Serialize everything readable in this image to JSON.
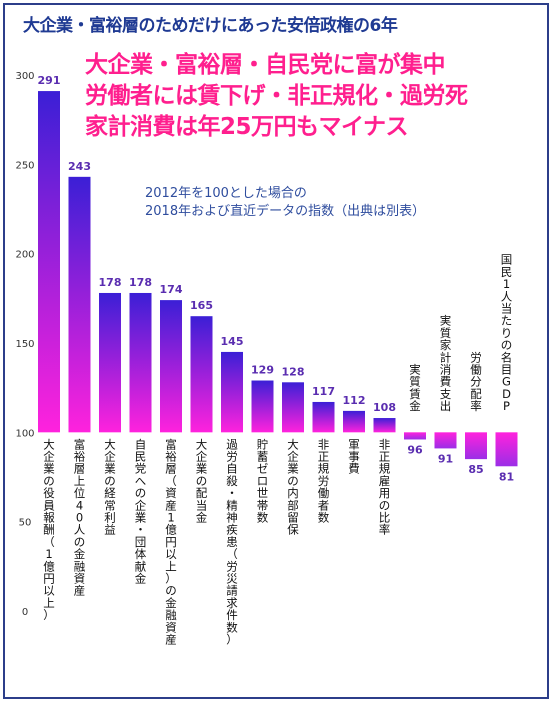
{
  "title": "大企業・富裕層のためだけにあった安倍政権の6年",
  "headlines": [
    "大企業・富裕層・自民党に富が集中",
    "労働者には賃下げ・非正規化・過労死",
    "家計消費は年25万円もマイナス"
  ],
  "notes": [
    "2012年を100とした場合の",
    "2018年および直近データの指数（出典は別表）"
  ],
  "colors": {
    "title": "#1f3a93",
    "headline": "#ff1f8e",
    "note": "#2f4d9e",
    "bar_top": "#3b1fd6",
    "bar_bottom": "#ff22dd",
    "value_label": "#5a2db0"
  },
  "chart_data": {
    "type": "bar",
    "title": "",
    "xlabel": "",
    "ylabel": "",
    "ylim": [
      0,
      300
    ],
    "baseline": 100,
    "yticks": [
      0,
      50,
      100,
      150,
      200,
      250,
      300
    ],
    "categories": [
      "大企業の役員報酬（1億円以上）",
      "富裕層上位40人の金融資産",
      "大企業の経常利益",
      "自民党への企業・団体献金",
      "富裕層（資産1億円以上）の金融資産",
      "大企業の配当金",
      "過労自殺・精神疾患（労災請求件数）",
      "貯蓄ゼロ世帯数",
      "大企業の内部留保",
      "非正規労働者数",
      "軍事費",
      "非正規雇用の比率",
      "実質賃金",
      "実質家計消費支出",
      "労働分配率",
      "国民1人当たりの名目GDP"
    ],
    "values": [
      291,
      243,
      178,
      178,
      174,
      165,
      145,
      129,
      128,
      117,
      112,
      108,
      96,
      91,
      85,
      81
    ]
  }
}
